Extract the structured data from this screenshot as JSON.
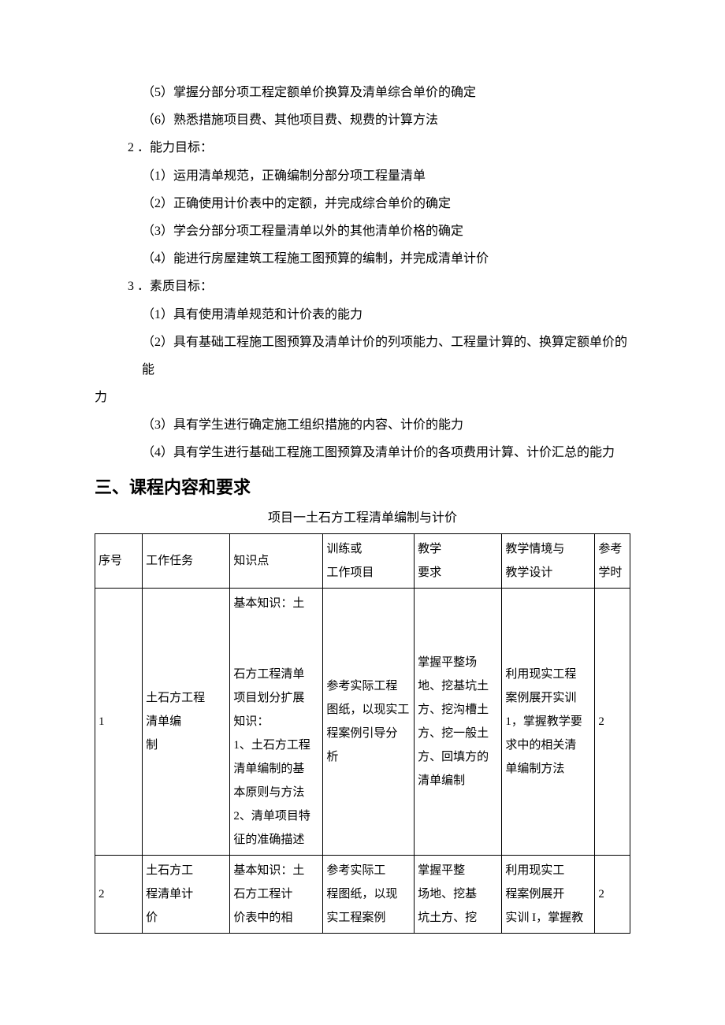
{
  "items": {
    "i5": "（5）掌握分部分项工程定额单价换算及清单综合单价的确定",
    "i6": "（6）熟悉措施项目费、其他项目费、规费的计算方法"
  },
  "goal2": {
    "title": "2 ．能力目标：",
    "a1": "（1）运用清单规范，正确编制分部分项工程量清单",
    "a2": "（2）正确使用计价表中的定额，并完成综合单价的确定",
    "a3": "（3）学会分部分项工程量清单以外的其他清单价格的确定",
    "a4": "（4）能进行房屋建筑工程施工图预算的编制，并完成清单计价"
  },
  "goal3": {
    "title": "3 ．素质目标：",
    "q1": "（1）具有使用清单规范和计价表的能力",
    "q2": "（2）具有基础工程施工图预算及清单计价的列项能力、工程量计算的、换算定额单价的能",
    "q2b": "力",
    "q3": "（3）具有学生进行确定施工组织措施的内容、计价的能力",
    "q4": "（4）具有学生进行基础工程施工图预算及清单计价的各项费用计算、计价汇总的能力"
  },
  "heading3": "三、课程内容和要求",
  "table": {
    "title": "项目一土石方工程清单编制与计价",
    "header": {
      "c1": "序号",
      "c2": "工作任务",
      "c3": "知识点",
      "c4": "训练或\n工作项目",
      "c5": "教学\n要求",
      "c6": "教学情境与\n教学设计",
      "c7": "参考\n学时"
    },
    "row1": {
      "c1": "1",
      "c2": "土石方工程\n清单编\n制",
      "c3": "基本知识：土\n\n\n石方工程清单\n项目划分扩展\n知识：\n1、土石方工程\n清单编制的基\n本原则与方法\n2、清单项目特\n征的准确描述",
      "c4": "参考实际工程\n图纸，以现实工\n程案例引导分\n析",
      "c5": "掌握平整场\n地、挖基坑土\n方、挖沟槽土\n方、挖一般土\n方、回填方的\n清单编制",
      "c6": "利用现实工程\n案例展开实训\n1，掌握教学要\n求中的相关清\n单编制方法",
      "c7": "2"
    },
    "row2": {
      "c1": "2",
      "c2": "土石方工\n程清单计\n价",
      "c3": "基本知识：土\n石方工程计\n价表中的相",
      "c4": "参考实际工\n程图纸，以现\n实工程案例",
      "c5": "掌握平整\n场地、挖基\n坑土方、挖",
      "c6": "利用现实工\n程案例展开\n实训 I，掌握教",
      "c7": "2"
    }
  }
}
